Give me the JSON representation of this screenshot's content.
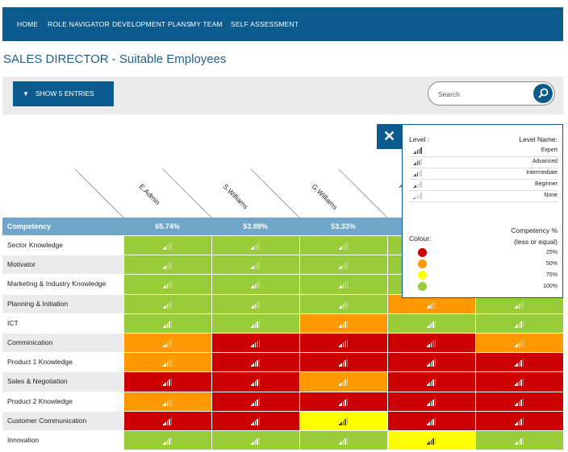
{
  "nav": {
    "items": [
      "HOME",
      "ROLE NAVIGATOR",
      "DEVELOPMENT PLANS",
      "MY TEAM",
      "SELF ASSESSMENT"
    ]
  },
  "page": {
    "title": "SALES DIRECTOR - Suitable Employees"
  },
  "toolbar": {
    "show_entries_label": "SHOW 5 ENTRIES",
    "search_placeholder": "Search"
  },
  "employees": [
    "E.Admin",
    "S.Williams",
    "G.Williams",
    "F",
    ""
  ],
  "competency": {
    "label": "Competency",
    "percentages": [
      "65.74%",
      "53.89%",
      "53.33%",
      "",
      ""
    ]
  },
  "colors": {
    "green": "#98cc38",
    "orange": "#ff9900",
    "red": "#cc0000",
    "yellow": "#ffff00",
    "header_blue": "#6fa6c9",
    "brand": "#0b5b8e"
  },
  "rows": [
    {
      "label": "Sector Knowledge",
      "cells": [
        [
          "green",
          2
        ],
        [
          "green",
          2
        ],
        [
          "green",
          2
        ],
        [
          "green",
          2
        ],
        [
          "green",
          2
        ]
      ]
    },
    {
      "label": "Motivator",
      "cells": [
        [
          "green",
          2
        ],
        [
          "green",
          2
        ],
        [
          "green",
          2
        ],
        [
          "green",
          2
        ],
        [
          "green",
          2
        ]
      ]
    },
    {
      "label": "Marketing & Industry Knowledge",
      "cells": [
        [
          "green",
          3
        ],
        [
          "green",
          3
        ],
        [
          "green",
          3
        ],
        [
          "green",
          3
        ],
        [
          "green",
          3
        ]
      ]
    },
    {
      "label": "Planning & Initiation",
      "cells": [
        [
          "green",
          3
        ],
        [
          "green",
          3
        ],
        [
          "green",
          3
        ],
        [
          "orange",
          3
        ],
        [
          "green",
          3
        ]
      ]
    },
    {
      "label": "ICT",
      "cells": [
        [
          "green",
          4
        ],
        [
          "green",
          4
        ],
        [
          "orange",
          4
        ],
        [
          "green",
          4
        ],
        [
          "green",
          4
        ]
      ]
    },
    {
      "label": "Comminication",
      "cells": [
        [
          "orange",
          3
        ],
        [
          "red",
          3
        ],
        [
          "red",
          3
        ],
        [
          "red",
          3
        ],
        [
          "orange",
          3
        ]
      ]
    },
    {
      "label": "Product 1 Knowledge",
      "cells": [
        [
          "orange",
          3
        ],
        [
          "red",
          4
        ],
        [
          "red",
          4
        ],
        [
          "red",
          4
        ],
        [
          "red",
          4
        ]
      ]
    },
    {
      "label": "Sales & Negotiation",
      "cells": [
        [
          "red",
          4
        ],
        [
          "red",
          4
        ],
        [
          "orange",
          4
        ],
        [
          "red",
          4
        ],
        [
          "red",
          4
        ]
      ]
    },
    {
      "label": "Product 2 Knowledge",
      "cells": [
        [
          "orange",
          3
        ],
        [
          "red",
          4
        ],
        [
          "red",
          4
        ],
        [
          "red",
          4
        ],
        [
          "red",
          4
        ]
      ]
    },
    {
      "label": "Customer Communication",
      "cells": [
        [
          "red",
          4
        ],
        [
          "red",
          4
        ],
        [
          "yellow",
          4
        ],
        [
          "red",
          4
        ],
        [
          "red",
          4
        ]
      ]
    },
    {
      "label": "Innovation",
      "cells": [
        [
          "green",
          4
        ],
        [
          "green",
          4
        ],
        [
          "green",
          4
        ],
        [
          "yellow",
          4
        ],
        [
          "green",
          4
        ]
      ]
    }
  ],
  "legend": {
    "level_label": "Level :",
    "level_name_label": "Level Name:",
    "levels": [
      {
        "name": "Expert",
        "bars": 5
      },
      {
        "name": "Advanced",
        "bars": 4
      },
      {
        "name": "Intermediate",
        "bars": 3
      },
      {
        "name": "Beginner",
        "bars": 2
      },
      {
        "name": "None",
        "bars": 1
      }
    ],
    "colour_label": "Colour:",
    "competency_header_1": "Competency %",
    "competency_header_2": "(less or equal)",
    "colours": [
      {
        "color": "#cc0000",
        "value": "25%"
      },
      {
        "color": "#ff9900",
        "value": "50%"
      },
      {
        "color": "#ffff00",
        "value": "75%"
      },
      {
        "color": "#98cc38",
        "value": "100%"
      }
    ],
    "close_label": "✕"
  }
}
